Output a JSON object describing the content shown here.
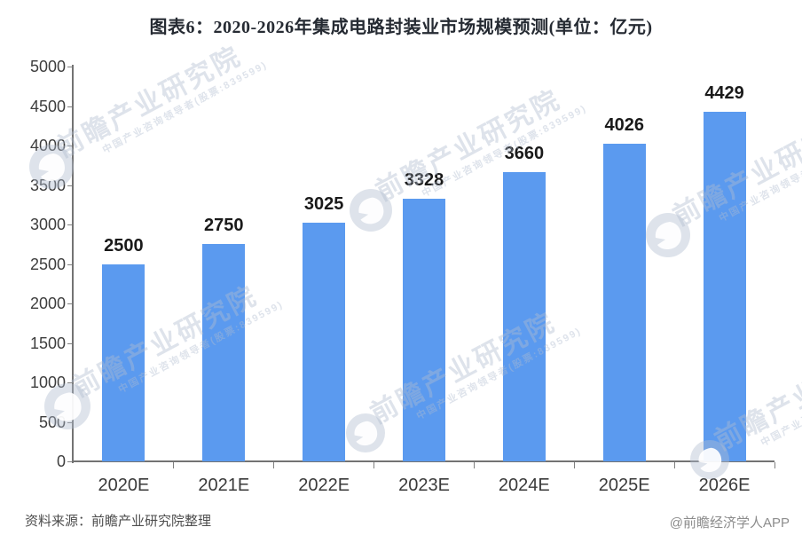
{
  "page_title": "图表6：2020-2026年集成电路封装业市场规模预测(单位：亿元)",
  "chart_data": {
    "type": "bar",
    "title": "图表6：2020-2026年集成电路封装业市场规模预测(单位：亿元)",
    "unit": "亿元",
    "categories": [
      "2020E",
      "2021E",
      "2022E",
      "2023E",
      "2024E",
      "2025E",
      "2026E"
    ],
    "values": [
      2500,
      2750,
      3025,
      3328,
      3660,
      4026,
      4429
    ],
    "xlabel": "",
    "ylabel": "",
    "ylim": [
      0,
      5000
    ],
    "ytick_step": 500,
    "grid": false,
    "legend": null,
    "value_labels": true,
    "bar_color": "#5B9AEF"
  },
  "footer": {
    "source": "资料来源：前瞻产业研究院整理",
    "credit": "@前瞻经济学人APP"
  },
  "watermark": {
    "brand": "前瞻产业研究院",
    "tagline": "中国产业咨询领导者(股票:839599)",
    "logo": "qianzhan-bird-logo",
    "color": "rgba(176,188,208,0.42)"
  },
  "colors": {
    "bar": "#5B9AEF",
    "axis": "#737373",
    "tick_label": "#3d3d3d",
    "value_label": "#1a1a1a",
    "title": "#262b33",
    "source_text": "#4d4d4d",
    "credit_text": "#8c8c8c",
    "background": "#ffffff"
  }
}
